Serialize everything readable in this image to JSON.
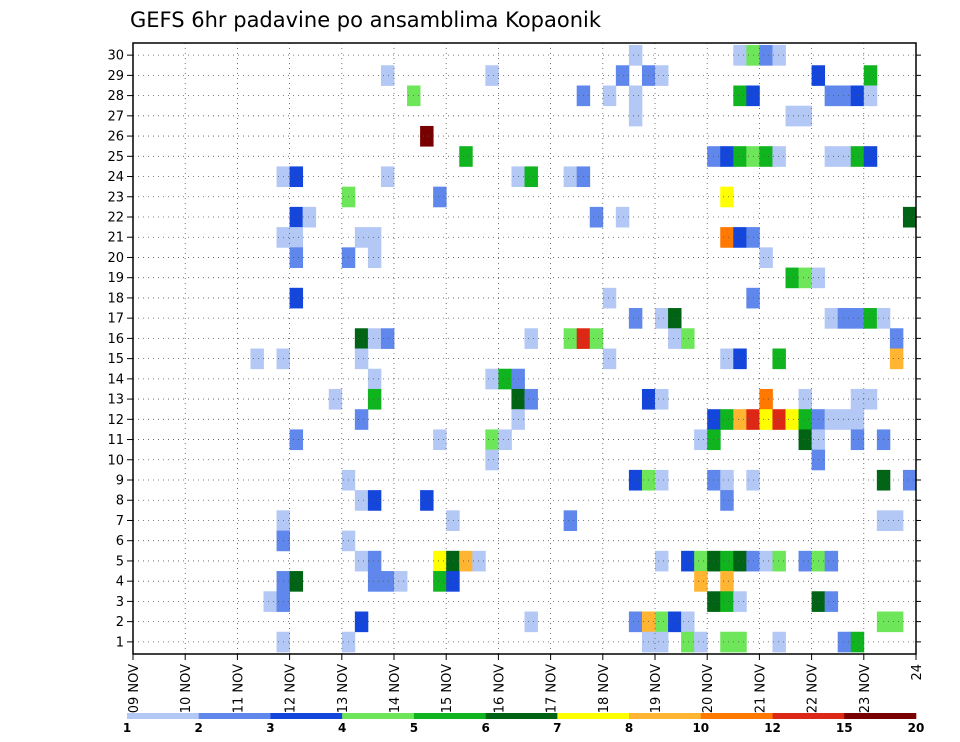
{
  "chart_data": {
    "type": "heatmap",
    "title": "GEFS 6hr padavine po ansamblima Kopaonik",
    "xlabel": "",
    "ylabel": "",
    "x_ticks": [
      "09 NOV",
      "10 NOV",
      "11 NOV",
      "12 NOV",
      "13 NOV",
      "14 NOV",
      "15 NOV",
      "16 NOV",
      "17 NOV",
      "18 NOV",
      "19 NOV",
      "20 NOV",
      "21 NOV",
      "22 NOV",
      "23 NOV",
      "24"
    ],
    "y_ticks": [
      "1",
      "2",
      "3",
      "4",
      "5",
      "6",
      "7",
      "8",
      "9",
      "10",
      "11",
      "12",
      "13",
      "14",
      "15",
      "16",
      "17",
      "18",
      "19",
      "20",
      "21",
      "22",
      "23",
      "24",
      "25",
      "26",
      "27",
      "28",
      "29",
      "30"
    ],
    "xlim": [
      0,
      60
    ],
    "ylim": [
      0,
      30
    ],
    "grid": true,
    "colorbar": {
      "labels": [
        "1",
        "2",
        "3",
        "4",
        "5",
        "6",
        "7",
        "8",
        "10",
        "12",
        "15",
        "20"
      ],
      "colors": [
        "#b4c8f5",
        "#5f87ec",
        "#1446dc",
        "#6ee65a",
        "#10b41e",
        "#006414",
        "#ffff00",
        "#ffb432",
        "#ff7800",
        "#dc2814",
        "#780000"
      ]
    },
    "cell_note": "cells: [x_step (6h from 09 NOV 00z), member, precip_class (1..11 => colorbar bins)]",
    "cells": [
      [
        38,
        30,
        1
      ],
      [
        46,
        30,
        1
      ],
      [
        47,
        30,
        4
      ],
      [
        48,
        30,
        2
      ],
      [
        49,
        30,
        1
      ],
      [
        19,
        29,
        1
      ],
      [
        27,
        29,
        1
      ],
      [
        37,
        29,
        2
      ],
      [
        39,
        29,
        2
      ],
      [
        40,
        29,
        1
      ],
      [
        52,
        29,
        3
      ],
      [
        56,
        29,
        5
      ],
      [
        21,
        28,
        4
      ],
      [
        34,
        28,
        2
      ],
      [
        36,
        28,
        1
      ],
      [
        38,
        28,
        1
      ],
      [
        46,
        28,
        5
      ],
      [
        47,
        28,
        3
      ],
      [
        53,
        28,
        2
      ],
      [
        54,
        28,
        2
      ],
      [
        55,
        28,
        3
      ],
      [
        56,
        28,
        1
      ],
      [
        38,
        27,
        1
      ],
      [
        50,
        27,
        1
      ],
      [
        51,
        27,
        1
      ],
      [
        22,
        26,
        11
      ],
      [
        25,
        25,
        5
      ],
      [
        44,
        25,
        2
      ],
      [
        45,
        25,
        3
      ],
      [
        46,
        25,
        5
      ],
      [
        47,
        25,
        4
      ],
      [
        48,
        25,
        5
      ],
      [
        49,
        25,
        1
      ],
      [
        53,
        25,
        1
      ],
      [
        54,
        25,
        1
      ],
      [
        55,
        25,
        5
      ],
      [
        56,
        25,
        3
      ],
      [
        11,
        24,
        1
      ],
      [
        12,
        24,
        3
      ],
      [
        19,
        24,
        1
      ],
      [
        29,
        24,
        1
      ],
      [
        30,
        24,
        5
      ],
      [
        33,
        24,
        1
      ],
      [
        34,
        24,
        2
      ],
      [
        16,
        23,
        4
      ],
      [
        23,
        23,
        2
      ],
      [
        45,
        23,
        7
      ],
      [
        12,
        22,
        3
      ],
      [
        13,
        22,
        1
      ],
      [
        35,
        22,
        2
      ],
      [
        37,
        22,
        1
      ],
      [
        59,
        22,
        6
      ],
      [
        11,
        21,
        1
      ],
      [
        12,
        21,
        1
      ],
      [
        17,
        21,
        1
      ],
      [
        18,
        21,
        1
      ],
      [
        45,
        21,
        9
      ],
      [
        46,
        21,
        3
      ],
      [
        47,
        21,
        2
      ],
      [
        12,
        20,
        2
      ],
      [
        16,
        20,
        2
      ],
      [
        18,
        20,
        1
      ],
      [
        48,
        20,
        1
      ],
      [
        50,
        19,
        5
      ],
      [
        51,
        19,
        4
      ],
      [
        52,
        19,
        1
      ],
      [
        12,
        18,
        3
      ],
      [
        36,
        18,
        1
      ],
      [
        47,
        18,
        2
      ],
      [
        38,
        17,
        2
      ],
      [
        40,
        17,
        1
      ],
      [
        41,
        17,
        6
      ],
      [
        53,
        17,
        1
      ],
      [
        54,
        17,
        2
      ],
      [
        55,
        17,
        2
      ],
      [
        56,
        17,
        5
      ],
      [
        57,
        17,
        1
      ],
      [
        17,
        16,
        6
      ],
      [
        18,
        16,
        1
      ],
      [
        19,
        16,
        2
      ],
      [
        30,
        16,
        1
      ],
      [
        33,
        16,
        4
      ],
      [
        34,
        16,
        10
      ],
      [
        35,
        16,
        4
      ],
      [
        41,
        16,
        1
      ],
      [
        42,
        16,
        4
      ],
      [
        58,
        16,
        2
      ],
      [
        9,
        15,
        1
      ],
      [
        11,
        15,
        1
      ],
      [
        17,
        15,
        1
      ],
      [
        36,
        15,
        1
      ],
      [
        45,
        15,
        1
      ],
      [
        46,
        15,
        3
      ],
      [
        49,
        15,
        5
      ],
      [
        58,
        15,
        8
      ],
      [
        18,
        14,
        1
      ],
      [
        27,
        14,
        1
      ],
      [
        28,
        14,
        5
      ],
      [
        29,
        14,
        2
      ],
      [
        15,
        13,
        1
      ],
      [
        18,
        13,
        5
      ],
      [
        29,
        13,
        6
      ],
      [
        30,
        13,
        2
      ],
      [
        39,
        13,
        3
      ],
      [
        40,
        13,
        1
      ],
      [
        48,
        13,
        9
      ],
      [
        51,
        13,
        1
      ],
      [
        55,
        13,
        1
      ],
      [
        56,
        13,
        1
      ],
      [
        17,
        12,
        2
      ],
      [
        29,
        12,
        1
      ],
      [
        44,
        12,
        3
      ],
      [
        45,
        12,
        5
      ],
      [
        46,
        12,
        8
      ],
      [
        47,
        12,
        10
      ],
      [
        48,
        12,
        7
      ],
      [
        49,
        12,
        10
      ],
      [
        50,
        12,
        7
      ],
      [
        51,
        12,
        5
      ],
      [
        52,
        12,
        2
      ],
      [
        53,
        12,
        1
      ],
      [
        54,
        12,
        1
      ],
      [
        55,
        12,
        1
      ],
      [
        12,
        11,
        2
      ],
      [
        23,
        11,
        1
      ],
      [
        27,
        11,
        4
      ],
      [
        28,
        11,
        1
      ],
      [
        43,
        11,
        1
      ],
      [
        44,
        11,
        5
      ],
      [
        51,
        11,
        6
      ],
      [
        52,
        11,
        1
      ],
      [
        55,
        11,
        2
      ],
      [
        57,
        11,
        2
      ],
      [
        27,
        10,
        1
      ],
      [
        52,
        10,
        2
      ],
      [
        16,
        9,
        1
      ],
      [
        38,
        9,
        3
      ],
      [
        39,
        9,
        4
      ],
      [
        40,
        9,
        1
      ],
      [
        44,
        9,
        2
      ],
      [
        45,
        9,
        1
      ],
      [
        47,
        9,
        1
      ],
      [
        57,
        9,
        6
      ],
      [
        59,
        9,
        2
      ],
      [
        17,
        8,
        1
      ],
      [
        18,
        8,
        3
      ],
      [
        22,
        8,
        3
      ],
      [
        45,
        8,
        2
      ],
      [
        11,
        7,
        1
      ],
      [
        24,
        7,
        1
      ],
      [
        33,
        7,
        2
      ],
      [
        57,
        7,
        1
      ],
      [
        58,
        7,
        1
      ],
      [
        11,
        6,
        2
      ],
      [
        16,
        6,
        1
      ],
      [
        17,
        5,
        1
      ],
      [
        18,
        5,
        2
      ],
      [
        23,
        5,
        7
      ],
      [
        24,
        5,
        6
      ],
      [
        25,
        5,
        8
      ],
      [
        26,
        5,
        1
      ],
      [
        40,
        5,
        1
      ],
      [
        42,
        5,
        3
      ],
      [
        43,
        5,
        4
      ],
      [
        44,
        5,
        6
      ],
      [
        45,
        5,
        5
      ],
      [
        46,
        5,
        6
      ],
      [
        47,
        5,
        2
      ],
      [
        48,
        5,
        1
      ],
      [
        49,
        5,
        4
      ],
      [
        51,
        5,
        2
      ],
      [
        52,
        5,
        4
      ],
      [
        53,
        5,
        2
      ],
      [
        11,
        4,
        2
      ],
      [
        12,
        4,
        6
      ],
      [
        18,
        4,
        2
      ],
      [
        19,
        4,
        2
      ],
      [
        20,
        4,
        1
      ],
      [
        23,
        4,
        5
      ],
      [
        24,
        4,
        3
      ],
      [
        43,
        4,
        8
      ],
      [
        45,
        4,
        8
      ],
      [
        10,
        3,
        1
      ],
      [
        11,
        3,
        2
      ],
      [
        44,
        3,
        6
      ],
      [
        45,
        3,
        5
      ],
      [
        46,
        3,
        1
      ],
      [
        52,
        3,
        6
      ],
      [
        53,
        3,
        2
      ],
      [
        17,
        2,
        3
      ],
      [
        30,
        2,
        1
      ],
      [
        38,
        2,
        2
      ],
      [
        39,
        2,
        8
      ],
      [
        40,
        2,
        4
      ],
      [
        41,
        2,
        3
      ],
      [
        42,
        2,
        1
      ],
      [
        57,
        2,
        4
      ],
      [
        58,
        2,
        4
      ],
      [
        11,
        1,
        1
      ],
      [
        16,
        1,
        1
      ],
      [
        39,
        1,
        1
      ],
      [
        40,
        1,
        1
      ],
      [
        42,
        1,
        4
      ],
      [
        43,
        1,
        1
      ],
      [
        45,
        1,
        4
      ],
      [
        46,
        1,
        4
      ],
      [
        49,
        1,
        1
      ],
      [
        54,
        1,
        2
      ],
      [
        55,
        1,
        5
      ]
    ]
  }
}
